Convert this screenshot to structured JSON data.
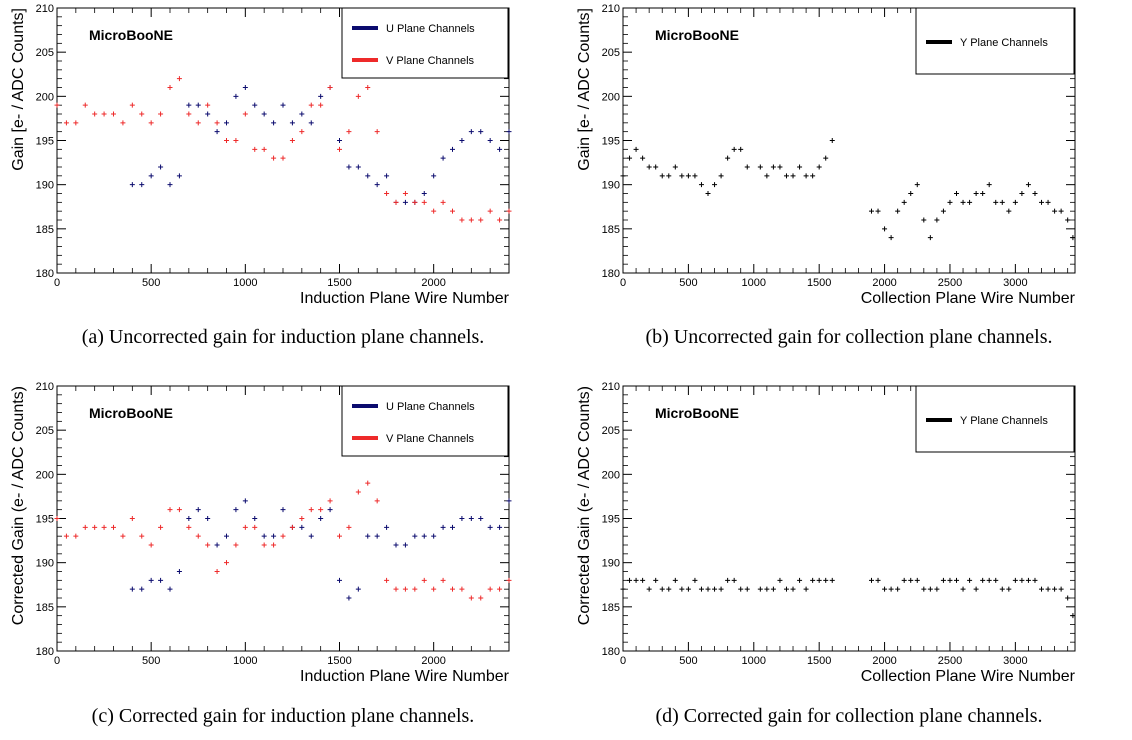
{
  "colors": {
    "u": "#0b0b6e",
    "v": "#ee2a2a",
    "y": "#000000",
    "frame": "#000000"
  },
  "captions": [
    "(a) Uncorrected gain for induction plane channels.",
    "(b) Uncorrected gain for collection plane channels.",
    "(c) Corrected gain for induction plane channels.",
    "(d) Corrected gain for collection plane channels."
  ],
  "chart_data": [
    {
      "id": "a",
      "type": "scatter",
      "title": "MicroBooNE",
      "xlabel": "Induction Plane Wire Number",
      "ylabel": "Gain [e- / ADC Counts]",
      "xlim": [
        0,
        2400
      ],
      "ylim": [
        180,
        210
      ],
      "xticks": [
        0,
        500,
        1000,
        1500,
        2000
      ],
      "yticks": [
        180,
        185,
        190,
        195,
        200,
        205,
        210
      ],
      "legend": [
        "U Plane Channels",
        "V Plane Channels"
      ],
      "series": [
        {
          "name": "U Plane Channels",
          "color": "#0b0b6e",
          "x": [
            400,
            450,
            500,
            550,
            600,
            650,
            700,
            750,
            800,
            850,
            900,
            950,
            1000,
            1050,
            1100,
            1150,
            1200,
            1250,
            1300,
            1350,
            1400,
            1450,
            1500,
            1550,
            1600,
            1650,
            1700,
            1750,
            1800,
            1850,
            1900,
            1950,
            2000,
            2050,
            2100,
            2150,
            2200,
            2250,
            2300,
            2350,
            2400
          ],
          "y": [
            190,
            190,
            191,
            192,
            190,
            191,
            199,
            199,
            198,
            196,
            197,
            200,
            201,
            199,
            198,
            197,
            199,
            197,
            198,
            197,
            200,
            201,
            195,
            192,
            192,
            191,
            190,
            191,
            188,
            188,
            188,
            189,
            191,
            193,
            194,
            195,
            196,
            196,
            195,
            194,
            196
          ]
        },
        {
          "name": "V Plane Channels",
          "color": "#ee2a2a",
          "x": [
            0,
            50,
            100,
            150,
            200,
            250,
            300,
            350,
            400,
            450,
            500,
            550,
            600,
            650,
            700,
            750,
            800,
            850,
            900,
            950,
            1000,
            1050,
            1100,
            1150,
            1200,
            1250,
            1300,
            1350,
            1400,
            1450,
            1500,
            1550,
            1600,
            1650,
            1700,
            1750,
            1800,
            1850,
            1900,
            1950,
            2000,
            2050,
            2100,
            2150,
            2200,
            2250,
            2300,
            2350,
            2400
          ],
          "y": [
            199,
            197,
            197,
            199,
            198,
            198,
            198,
            197,
            199,
            198,
            197,
            198,
            201,
            202,
            198,
            197,
            199,
            197,
            195,
            195,
            198,
            194,
            194,
            193,
            193,
            195,
            196,
            199,
            199,
            201,
            194,
            196,
            200,
            201,
            196,
            189,
            188,
            189,
            188,
            188,
            187,
            188,
            187,
            186,
            186,
            186,
            187,
            186,
            187
          ]
        }
      ]
    },
    {
      "id": "b",
      "type": "scatter",
      "title": "MicroBooNE",
      "xlabel": "Collection Plane Wire Number",
      "ylabel": "Gain [e- / ADC Counts]",
      "xlim": [
        0,
        3456
      ],
      "ylim": [
        180,
        210
      ],
      "xticks": [
        0,
        500,
        1000,
        1500,
        2000,
        2500,
        3000
      ],
      "yticks": [
        180,
        185,
        190,
        195,
        200,
        205,
        210
      ],
      "legend": [
        "Y Plane Channels"
      ],
      "series": [
        {
          "name": "Y Plane Channels",
          "color": "#000000",
          "x": [
            0,
            50,
            100,
            150,
            200,
            250,
            300,
            350,
            400,
            450,
            500,
            550,
            600,
            650,
            700,
            750,
            800,
            850,
            900,
            950,
            1050,
            1100,
            1150,
            1200,
            1250,
            1300,
            1350,
            1400,
            1450,
            1500,
            1550,
            1600,
            1900,
            1950,
            2000,
            2050,
            2100,
            2150,
            2200,
            2250,
            2300,
            2350,
            2400,
            2450,
            2500,
            2550,
            2600,
            2650,
            2700,
            2750,
            2800,
            2850,
            2900,
            2950,
            3000,
            3050,
            3100,
            3150,
            3200,
            3250,
            3300,
            3350,
            3400,
            3440
          ],
          "y": [
            191,
            193,
            194,
            193,
            192,
            192,
            191,
            191,
            192,
            191,
            191,
            191,
            190,
            189,
            190,
            191,
            193,
            194,
            194,
            192,
            192,
            191,
            192,
            192,
            191,
            191,
            192,
            191,
            191,
            192,
            193,
            195,
            187,
            187,
            185,
            184,
            187,
            188,
            189,
            190,
            186,
            184,
            186,
            187,
            188,
            189,
            188,
            188,
            189,
            189,
            190,
            188,
            188,
            187,
            188,
            189,
            190,
            189,
            188,
            188,
            187,
            187,
            186,
            184
          ]
        }
      ]
    },
    {
      "id": "c",
      "type": "scatter",
      "title": "MicroBooNE",
      "xlabel": "Induction Plane Wire Number",
      "ylabel": "Corrected Gain (e- / ADC Counts)",
      "xlim": [
        0,
        2400
      ],
      "ylim": [
        180,
        210
      ],
      "xticks": [
        0,
        500,
        1000,
        1500,
        2000
      ],
      "yticks": [
        180,
        185,
        190,
        195,
        200,
        205,
        210
      ],
      "legend": [
        "U Plane Channels",
        "V Plane Channels"
      ],
      "series": [
        {
          "name": "U Plane Channels",
          "color": "#0b0b6e",
          "x": [
            400,
            450,
            500,
            550,
            600,
            650,
            700,
            750,
            800,
            850,
            900,
            950,
            1000,
            1050,
            1100,
            1150,
            1200,
            1250,
            1300,
            1350,
            1400,
            1450,
            1500,
            1550,
            1600,
            1650,
            1700,
            1750,
            1800,
            1850,
            1900,
            1950,
            2000,
            2050,
            2100,
            2150,
            2200,
            2250,
            2300,
            2350,
            2400
          ],
          "y": [
            187,
            187,
            188,
            188,
            187,
            189,
            195,
            196,
            195,
            192,
            193,
            196,
            197,
            195,
            193,
            193,
            196,
            194,
            194,
            193,
            195,
            196,
            188,
            186,
            187,
            193,
            193,
            194,
            192,
            192,
            193,
            193,
            193,
            194,
            194,
            195,
            195,
            195,
            194,
            194,
            197
          ]
        },
        {
          "name": "V Plane Channels",
          "color": "#ee2a2a",
          "x": [
            0,
            50,
            100,
            150,
            200,
            250,
            300,
            350,
            400,
            450,
            500,
            550,
            600,
            650,
            700,
            750,
            800,
            850,
            900,
            950,
            1000,
            1050,
            1100,
            1150,
            1200,
            1250,
            1300,
            1350,
            1400,
            1450,
            1500,
            1550,
            1600,
            1650,
            1700,
            1750,
            1800,
            1850,
            1900,
            1950,
            2000,
            2050,
            2100,
            2150,
            2200,
            2250,
            2300,
            2350,
            2400
          ],
          "y": [
            195,
            193,
            193,
            194,
            194,
            194,
            194,
            193,
            195,
            193,
            192,
            194,
            196,
            196,
            194,
            193,
            192,
            189,
            190,
            192,
            194,
            194,
            192,
            192,
            193,
            194,
            195,
            196,
            196,
            197,
            193,
            194,
            198,
            199,
            197,
            188,
            187,
            187,
            187,
            188,
            187,
            188,
            187,
            187,
            186,
            186,
            187,
            187,
            188
          ]
        }
      ]
    },
    {
      "id": "d",
      "type": "scatter",
      "title": "MicroBooNE",
      "xlabel": "Collection Plane Wire Number",
      "ylabel": "Corrected Gain (e- / ADC Counts)",
      "xlim": [
        0,
        3456
      ],
      "ylim": [
        180,
        210
      ],
      "xticks": [
        0,
        500,
        1000,
        1500,
        2000,
        2500,
        3000
      ],
      "yticks": [
        180,
        185,
        190,
        195,
        200,
        205,
        210
      ],
      "legend": [
        "Y Plane Channels"
      ],
      "series": [
        {
          "name": "Y Plane Channels",
          "color": "#000000",
          "x": [
            0,
            50,
            100,
            150,
            200,
            250,
            300,
            350,
            400,
            450,
            500,
            550,
            600,
            650,
            700,
            750,
            800,
            850,
            900,
            950,
            1050,
            1100,
            1150,
            1200,
            1250,
            1300,
            1350,
            1400,
            1450,
            1500,
            1550,
            1600,
            1900,
            1950,
            2000,
            2050,
            2100,
            2150,
            2200,
            2250,
            2300,
            2350,
            2400,
            2450,
            2500,
            2550,
            2600,
            2650,
            2700,
            2750,
            2800,
            2850,
            2900,
            2950,
            3000,
            3050,
            3100,
            3150,
            3200,
            3250,
            3300,
            3350,
            3400,
            3440
          ],
          "y": [
            187,
            188,
            188,
            188,
            187,
            188,
            187,
            187,
            188,
            187,
            187,
            188,
            187,
            187,
            187,
            187,
            188,
            188,
            187,
            187,
            187,
            187,
            187,
            188,
            187,
            187,
            188,
            187,
            188,
            188,
            188,
            188,
            188,
            188,
            187,
            187,
            187,
            188,
            188,
            188,
            187,
            187,
            187,
            188,
            188,
            188,
            187,
            188,
            187,
            188,
            188,
            188,
            187,
            187,
            188,
            188,
            188,
            188,
            187,
            187,
            187,
            187,
            186,
            184
          ]
        }
      ]
    }
  ]
}
